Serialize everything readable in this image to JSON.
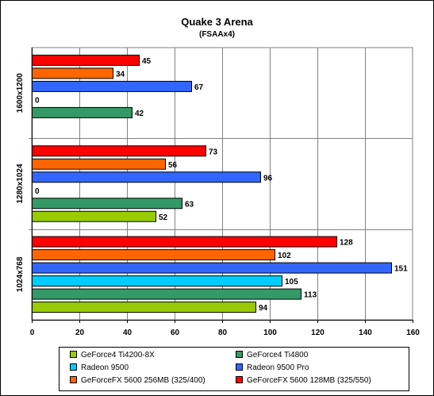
{
  "chart_data": {
    "type": "bar",
    "orientation": "horizontal",
    "title": "Quake 3 Arena",
    "subtitle": "(FSAAx4)",
    "xlim": [
      0,
      160
    ],
    "x_ticks": [
      "0",
      "20",
      "40",
      "60",
      "80",
      "100",
      "120",
      "140",
      "160"
    ],
    "grid": "vertical",
    "legend_position": "bottom",
    "categories": [
      "1600x1200",
      "1280x1024",
      "1024x768"
    ],
    "series": [
      {
        "name": "GeForce4 Ti4200-8X",
        "color": "#99cc00",
        "values": [
          null,
          52,
          94
        ]
      },
      {
        "name": "GeForce4 Ti4800",
        "color": "#339966",
        "values": [
          42,
          63,
          113
        ]
      },
      {
        "name": "Radeon 9500",
        "color": "#00ccff",
        "values": [
          0,
          0,
          105
        ]
      },
      {
        "name": "Radeon 9500 Pro",
        "color": "#3366ff",
        "values": [
          67,
          96,
          151
        ]
      },
      {
        "name": "GeForceFX 5600 256MB (325/400)",
        "color": "#ff6600",
        "values": [
          34,
          56,
          102
        ]
      },
      {
        "name": "GeForceFX 5600 128MB (325/550)",
        "color": "#ff0000",
        "values": [
          45,
          73,
          128
        ]
      }
    ]
  }
}
